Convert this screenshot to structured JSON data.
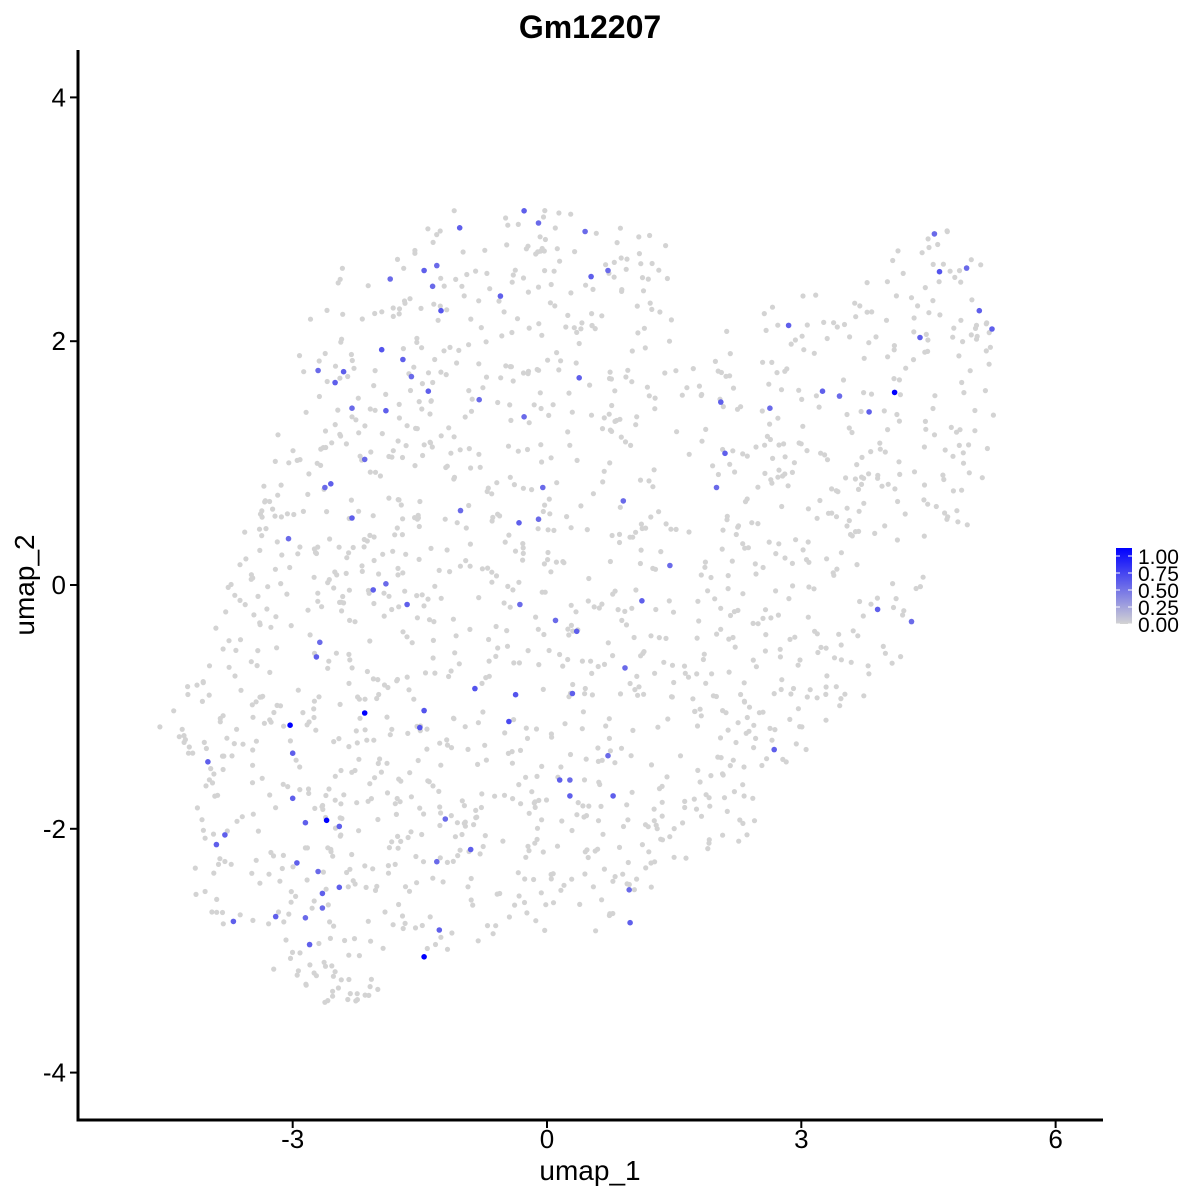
{
  "chart_data": {
    "type": "scatter",
    "title": "Gm12207",
    "xlabel": "umap_1",
    "ylabel": "umap_2",
    "xlim": [
      -5.4,
      6.6
    ],
    "ylim": [
      -4.35,
      4.45
    ],
    "x_ticks": [
      -3,
      0,
      3,
      6
    ],
    "y_ticks": [
      -4,
      -2,
      0,
      2,
      4
    ],
    "x_tick_labels": [
      "-3",
      "0",
      "3",
      "6"
    ],
    "y_tick_labels": [
      "-4",
      "-2",
      "0",
      "2",
      "4"
    ],
    "grid": false,
    "legend": {
      "placement": "right",
      "type": "colorbar",
      "range": [
        0,
        1
      ],
      "labels": [
        "1.00",
        "0.75",
        "0.50",
        "0.25",
        "0.00"
      ],
      "low_color": "#d3d3d3",
      "high_color": "#0000ff"
    },
    "background_value": 0,
    "background_point_count": 1600,
    "background_region": [
      [
        -4.65,
        -1.15
      ],
      [
        -4.2,
        -1.45
      ],
      [
        -4.15,
        -2.55
      ],
      [
        -3.6,
        -2.95
      ],
      [
        -3.05,
        -3.3
      ],
      [
        -2.5,
        -3.55
      ],
      [
        -2.0,
        -3.4
      ],
      [
        -1.55,
        -3.05
      ],
      [
        -0.9,
        -2.95
      ],
      [
        0.0,
        -2.85
      ],
      [
        0.6,
        -2.95
      ],
      [
        1.05,
        -2.7
      ],
      [
        1.5,
        -2.35
      ],
      [
        2.3,
        -2.15
      ],
      [
        2.75,
        -1.55
      ],
      [
        3.3,
        -1.2
      ],
      [
        3.8,
        -0.95
      ],
      [
        4.3,
        -0.55
      ],
      [
        4.6,
        0.0
      ],
      [
        4.95,
        0.35
      ],
      [
        5.25,
        1.1
      ],
      [
        5.4,
        2.0
      ],
      [
        5.3,
        2.45
      ],
      [
        5.0,
        2.75
      ],
      [
        4.55,
        3.1
      ],
      [
        4.0,
        2.65
      ],
      [
        3.4,
        2.45
      ],
      [
        2.6,
        2.3
      ],
      [
        1.9,
        2.0
      ],
      [
        1.6,
        1.65
      ],
      [
        1.5,
        2.8
      ],
      [
        0.5,
        3.05
      ],
      [
        -0.5,
        3.15
      ],
      [
        -1.5,
        3.05
      ],
      [
        -2.2,
        2.85
      ],
      [
        -2.9,
        2.1
      ],
      [
        -3.05,
        1.6
      ],
      [
        -3.35,
        0.85
      ],
      [
        -3.75,
        0.1
      ],
      [
        -4.0,
        -0.6
      ]
    ],
    "points": [
      {
        "x": -0.27,
        "y": 3.07,
        "value": 0.55
      },
      {
        "x": -0.1,
        "y": 2.97,
        "value": 0.5
      },
      {
        "x": 0.45,
        "y": 2.9,
        "value": 0.5
      },
      {
        "x": -1.03,
        "y": 2.93,
        "value": 0.55
      },
      {
        "x": -1.45,
        "y": 2.58,
        "value": 0.55
      },
      {
        "x": -1.3,
        "y": 2.62,
        "value": 0.5
      },
      {
        "x": -1.35,
        "y": 2.45,
        "value": 0.5
      },
      {
        "x": -1.25,
        "y": 2.25,
        "value": 0.6
      },
      {
        "x": -1.85,
        "y": 2.51,
        "value": 0.5
      },
      {
        "x": -0.55,
        "y": 2.37,
        "value": 0.55
      },
      {
        "x": 0.52,
        "y": 2.53,
        "value": 0.55
      },
      {
        "x": 0.72,
        "y": 2.58,
        "value": 0.5
      },
      {
        "x": -1.95,
        "y": 1.93,
        "value": 0.6
      },
      {
        "x": -1.7,
        "y": 1.85,
        "value": 0.55
      },
      {
        "x": -2.7,
        "y": 1.76,
        "value": 0.5
      },
      {
        "x": -2.4,
        "y": 1.75,
        "value": 0.55
      },
      {
        "x": -1.6,
        "y": 1.71,
        "value": 0.5
      },
      {
        "x": -2.5,
        "y": 1.66,
        "value": 0.55
      },
      {
        "x": -1.4,
        "y": 1.59,
        "value": 0.55
      },
      {
        "x": -0.8,
        "y": 1.52,
        "value": 0.5
      },
      {
        "x": -2.3,
        "y": 1.45,
        "value": 0.5
      },
      {
        "x": -1.9,
        "y": 1.43,
        "value": 0.55
      },
      {
        "x": -0.27,
        "y": 1.38,
        "value": 0.5
      },
      {
        "x": 0.38,
        "y": 1.7,
        "value": 0.55
      },
      {
        "x": -2.15,
        "y": 1.03,
        "value": 0.5
      },
      {
        "x": -2.55,
        "y": 0.83,
        "value": 0.55
      },
      {
        "x": -2.62,
        "y": 0.8,
        "value": 0.5
      },
      {
        "x": -0.05,
        "y": 0.8,
        "value": 0.5
      },
      {
        "x": -2.3,
        "y": 0.55,
        "value": 0.55
      },
      {
        "x": -1.02,
        "y": 0.61,
        "value": 0.5
      },
      {
        "x": -0.33,
        "y": 0.51,
        "value": 0.55
      },
      {
        "x": -0.1,
        "y": 0.54,
        "value": 0.5
      },
      {
        "x": 0.9,
        "y": 0.69,
        "value": 0.5
      },
      {
        "x": -3.05,
        "y": 0.38,
        "value": 0.5
      },
      {
        "x": -1.9,
        "y": 0.01,
        "value": 0.5
      },
      {
        "x": -2.05,
        "y": -0.04,
        "value": 0.55
      },
      {
        "x": -1.65,
        "y": -0.16,
        "value": 0.55
      },
      {
        "x": -0.32,
        "y": -0.16,
        "value": 0.5
      },
      {
        "x": 1.45,
        "y": 0.16,
        "value": 0.5
      },
      {
        "x": 1.12,
        "y": -0.13,
        "value": 0.55
      },
      {
        "x": 0.1,
        "y": -0.29,
        "value": 0.5
      },
      {
        "x": 0.35,
        "y": -0.38,
        "value": 0.55
      },
      {
        "x": -2.68,
        "y": -0.47,
        "value": 0.5
      },
      {
        "x": -2.72,
        "y": -0.59,
        "value": 0.55
      },
      {
        "x": 0.92,
        "y": -0.68,
        "value": 0.5
      },
      {
        "x": -0.85,
        "y": -0.85,
        "value": 0.6
      },
      {
        "x": -0.37,
        "y": -0.9,
        "value": 0.6
      },
      {
        "x": 0.3,
        "y": -0.89,
        "value": 0.55
      },
      {
        "x": -2.15,
        "y": -1.05,
        "value": 1.0
      },
      {
        "x": -1.45,
        "y": -1.03,
        "value": 0.6
      },
      {
        "x": -0.45,
        "y": -1.12,
        "value": 0.65
      },
      {
        "x": -3.03,
        "y": -1.15,
        "value": 1.0
      },
      {
        "x": -1.5,
        "y": -1.17,
        "value": 0.6
      },
      {
        "x": -3.0,
        "y": -1.38,
        "value": 0.55
      },
      {
        "x": 0.72,
        "y": -1.4,
        "value": 0.5
      },
      {
        "x": -4.0,
        "y": -1.45,
        "value": 0.55
      },
      {
        "x": 0.15,
        "y": -1.6,
        "value": 0.55
      },
      {
        "x": 0.27,
        "y": -1.6,
        "value": 0.5
      },
      {
        "x": 0.27,
        "y": -1.73,
        "value": 0.55
      },
      {
        "x": 0.78,
        "y": -1.73,
        "value": 0.55
      },
      {
        "x": -3.0,
        "y": -1.75,
        "value": 0.55
      },
      {
        "x": -1.2,
        "y": -1.92,
        "value": 0.5
      },
      {
        "x": -2.6,
        "y": -1.93,
        "value": 1.0
      },
      {
        "x": -2.85,
        "y": -1.95,
        "value": 0.55
      },
      {
        "x": -2.45,
        "y": -1.98,
        "value": 0.55
      },
      {
        "x": -3.8,
        "y": -2.05,
        "value": 0.55
      },
      {
        "x": -3.9,
        "y": -2.13,
        "value": 0.55
      },
      {
        "x": -0.9,
        "y": -2.17,
        "value": 0.55
      },
      {
        "x": -2.95,
        "y": -2.28,
        "value": 0.55
      },
      {
        "x": -1.3,
        "y": -2.27,
        "value": 0.5
      },
      {
        "x": -2.7,
        "y": -2.35,
        "value": 0.5
      },
      {
        "x": -2.45,
        "y": -2.48,
        "value": 0.55
      },
      {
        "x": 0.97,
        "y": -2.5,
        "value": 0.5
      },
      {
        "x": -2.65,
        "y": -2.53,
        "value": 0.55
      },
      {
        "x": -2.65,
        "y": -2.65,
        "value": 0.5
      },
      {
        "x": -3.2,
        "y": -2.72,
        "value": 0.55
      },
      {
        "x": -2.85,
        "y": -2.73,
        "value": 0.5
      },
      {
        "x": -3.7,
        "y": -2.76,
        "value": 0.55
      },
      {
        "x": 0.98,
        "y": -2.77,
        "value": 0.55
      },
      {
        "x": -1.27,
        "y": -2.83,
        "value": 0.55
      },
      {
        "x": -2.8,
        "y": -2.95,
        "value": 0.55
      },
      {
        "x": -1.45,
        "y": -3.05,
        "value": 1.0
      },
      {
        "x": 4.57,
        "y": 2.88,
        "value": 0.5
      },
      {
        "x": 4.63,
        "y": 2.57,
        "value": 0.6
      },
      {
        "x": 4.95,
        "y": 2.6,
        "value": 0.5
      },
      {
        "x": 5.1,
        "y": 2.25,
        "value": 0.55
      },
      {
        "x": 5.25,
        "y": 2.1,
        "value": 0.55
      },
      {
        "x": 4.4,
        "y": 2.03,
        "value": 0.55
      },
      {
        "x": 2.85,
        "y": 2.13,
        "value": 0.55
      },
      {
        "x": 2.05,
        "y": 1.5,
        "value": 0.55
      },
      {
        "x": 2.63,
        "y": 1.45,
        "value": 0.5
      },
      {
        "x": 3.25,
        "y": 1.59,
        "value": 0.55
      },
      {
        "x": 3.45,
        "y": 1.55,
        "value": 0.5
      },
      {
        "x": 3.8,
        "y": 1.42,
        "value": 0.55
      },
      {
        "x": 4.1,
        "y": 1.58,
        "value": 1.0
      },
      {
        "x": 2.1,
        "y": 1.08,
        "value": 0.55
      },
      {
        "x": 2.0,
        "y": 0.8,
        "value": 0.5
      },
      {
        "x": 3.9,
        "y": -0.2,
        "value": 0.55
      },
      {
        "x": 4.3,
        "y": -0.3,
        "value": 0.5
      },
      {
        "x": 2.68,
        "y": -1.35,
        "value": 0.55
      }
    ]
  }
}
